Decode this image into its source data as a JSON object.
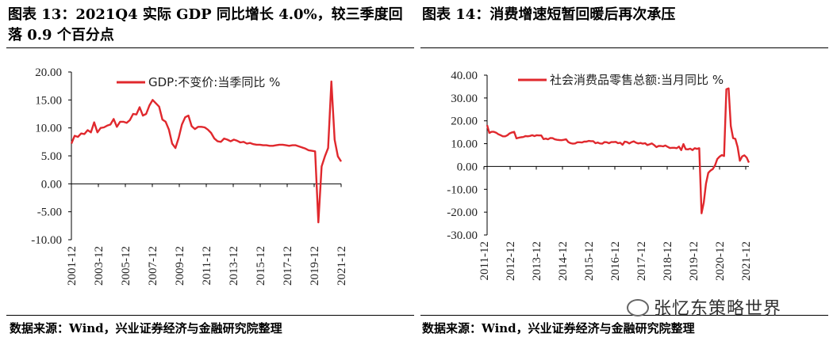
{
  "titles": {
    "left": "图表 13：2021Q4 实际 GDP 同比增长 4.0%，较三季度回落 0.9 个百分点",
    "right": "图表 14：消费增速短暂回暖后再次承压"
  },
  "sources": {
    "left": "数据来源：Wind，兴业证券经济与金融研究院整理",
    "right": "数据来源：Wind，兴业证券经济与金融研究院整理"
  },
  "watermark": "张忆东策略世界",
  "colors": {
    "series": "#e0282d",
    "axis": "#000000"
  },
  "chart_data": [
    {
      "type": "line",
      "title": "",
      "legend": "GDP:不变价:当季同比 %",
      "legend_position": "top-right",
      "grid": false,
      "ylim": [
        -10,
        20
      ],
      "yticks": [
        "20.00",
        "15.00",
        "10.00",
        "5.00",
        "0.00",
        "-5.00",
        "-10.00"
      ],
      "xticks": [
        "2001-12",
        "2003-12",
        "2005-12",
        "2007-12",
        "2009-12",
        "2011-12",
        "2013-12",
        "2015-12",
        "2017-12",
        "2019-12",
        "2021-12"
      ],
      "x": [
        "2001Q1",
        "2001Q2",
        "2001Q3",
        "2001Q4",
        "2002Q1",
        "2002Q2",
        "2002Q3",
        "2002Q4",
        "2003Q1",
        "2003Q2",
        "2003Q3",
        "2003Q4",
        "2004Q1",
        "2004Q2",
        "2004Q3",
        "2004Q4",
        "2005Q1",
        "2005Q2",
        "2005Q3",
        "2005Q4",
        "2006Q1",
        "2006Q2",
        "2006Q3",
        "2006Q4",
        "2007Q1",
        "2007Q2",
        "2007Q3",
        "2007Q4",
        "2008Q1",
        "2008Q2",
        "2008Q3",
        "2008Q4",
        "2009Q1",
        "2009Q2",
        "2009Q3",
        "2009Q4",
        "2010Q1",
        "2010Q2",
        "2010Q3",
        "2010Q4",
        "2011Q1",
        "2011Q2",
        "2011Q3",
        "2011Q4",
        "2012Q1",
        "2012Q2",
        "2012Q3",
        "2012Q4",
        "2013Q1",
        "2013Q2",
        "2013Q3",
        "2013Q4",
        "2014Q1",
        "2014Q2",
        "2014Q3",
        "2014Q4",
        "2015Q1",
        "2015Q2",
        "2015Q3",
        "2015Q4",
        "2016Q1",
        "2016Q2",
        "2016Q3",
        "2016Q4",
        "2017Q1",
        "2017Q2",
        "2017Q3",
        "2017Q4",
        "2018Q1",
        "2018Q2",
        "2018Q3",
        "2018Q4",
        "2019Q1",
        "2019Q2",
        "2019Q3",
        "2019Q4",
        "2020Q1",
        "2020Q2",
        "2020Q3",
        "2020Q4",
        "2021Q1",
        "2021Q2",
        "2021Q3",
        "2021Q4"
      ],
      "values": [
        7.2,
        8.6,
        8.4,
        9.0,
        8.9,
        9.6,
        9.2,
        11.0,
        9.2,
        10.0,
        10.1,
        10.4,
        10.6,
        11.6,
        10.2,
        11.1,
        11.1,
        10.9,
        11.4,
        12.5,
        12.4,
        13.7,
        12.2,
        12.5,
        14.0,
        15.0,
        14.4,
        13.8,
        11.5,
        11.1,
        9.7,
        7.2,
        6.4,
        8.2,
        10.6,
        11.9,
        12.2,
        10.3,
        9.8,
        10.2,
        10.2,
        10.1,
        9.7,
        9.1,
        8.1,
        7.6,
        7.5,
        8.1,
        7.9,
        7.6,
        7.9,
        7.7,
        7.4,
        7.5,
        7.2,
        7.3,
        7.1,
        7.0,
        7.0,
        6.9,
        6.9,
        6.8,
        6.8,
        6.9,
        7.0,
        7.0,
        6.9,
        6.8,
        6.9,
        6.9,
        6.7,
        6.5,
        6.3,
        6.0,
        5.9,
        5.8,
        -6.9,
        3.1,
        4.9,
        6.4,
        18.3,
        7.9,
        4.9,
        4.0
      ]
    },
    {
      "type": "line",
      "title": "",
      "legend": "社会消费品零售总额:当月同比 %",
      "legend_position": "top-left",
      "grid": false,
      "ylim": [
        -30,
        40
      ],
      "yticks": [
        "40.00",
        "30.00",
        "20.00",
        "10.00",
        "0.00",
        "-10.00",
        "-20.00",
        "-30.00"
      ],
      "xticks": [
        "2011-12",
        "2012-12",
        "2013-12",
        "2014-12",
        "2015-12",
        "2016-12",
        "2017-12",
        "2018-12",
        "2019-12",
        "2020-12",
        "2021-12"
      ],
      "x_range": [
        "2011-12",
        "2021-12"
      ],
      "values": [
        18.1,
        14.7,
        15.2,
        15.2,
        14.8,
        14.1,
        13.7,
        13.2,
        13.2,
        13.7,
        14.5,
        14.9,
        15.2,
        12.3,
        12.6,
        12.8,
        12.9,
        13.3,
        13.2,
        13.4,
        13.7,
        13.3,
        13.7,
        13.6,
        13.6,
        12.0,
        12.2,
        11.9,
        12.5,
        12.4,
        11.9,
        11.7,
        11.6,
        11.5,
        11.7,
        11.9,
        10.7,
        10.2,
        10.0,
        10.1,
        10.6,
        10.6,
        10.5,
        10.9,
        10.9,
        11.2,
        11.1,
        11.1,
        10.2,
        10.5,
        10.1,
        10.0,
        10.7,
        10.6,
        10.2,
        10.7,
        10.7,
        10.8,
        10.2,
        10.4,
        9.5,
        10.9,
        10.7,
        10.1,
        10.7,
        11.0,
        10.4,
        10.1,
        10.3,
        10.0,
        10.2,
        9.4,
        9.7,
        10.1,
        9.4,
        8.5,
        9.0,
        9.0,
        8.8,
        9.2,
        8.6,
        8.1,
        8.2,
        8.2,
        8.0,
        8.7,
        7.2,
        9.8,
        7.6,
        7.5,
        7.8,
        7.2,
        8.0,
        7.7,
        8.0,
        -20.5,
        -15.8,
        -7.5,
        -2.8,
        -1.8,
        -1.1,
        0.5,
        3.3,
        4.3,
        5.0,
        4.6,
        33.8,
        34.2,
        17.7,
        12.4,
        12.1,
        8.5,
        2.5,
        4.4,
        4.9,
        3.9,
        1.7
      ]
    }
  ]
}
